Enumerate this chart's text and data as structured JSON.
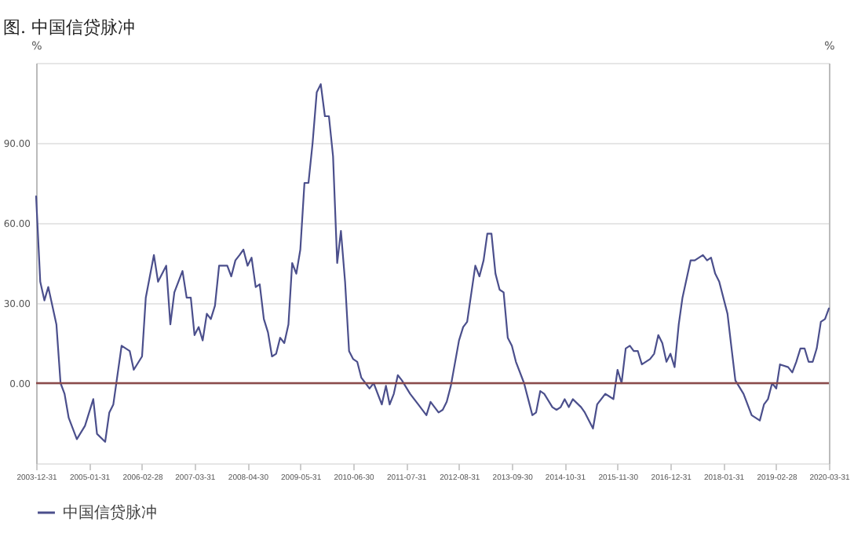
{
  "chart_data": {
    "type": "line",
    "title": "图. 中国信贷脉冲",
    "ylabel": "%",
    "y2label": "%",
    "x": [
      "2003-12",
      "2004-01",
      "2004-02",
      "2004-03",
      "2004-05",
      "2004-06",
      "2004-07",
      "2004-08",
      "2004-10",
      "2004-12",
      "2005-02",
      "2005-03",
      "2005-05",
      "2005-06",
      "2005-07",
      "2005-09",
      "2005-11",
      "2005-12",
      "2006-02",
      "2006-03",
      "2006-05",
      "2006-06",
      "2006-08",
      "2006-09",
      "2006-10",
      "2006-12",
      "2007-01",
      "2007-02",
      "2007-03",
      "2007-04",
      "2007-05",
      "2007-06",
      "2007-07",
      "2007-08",
      "2007-09",
      "2007-11",
      "2007-12",
      "2008-01",
      "2008-02",
      "2008-03",
      "2008-04",
      "2008-05",
      "2008-06",
      "2008-07",
      "2008-08",
      "2008-09",
      "2008-10",
      "2008-11",
      "2008-12",
      "2009-01",
      "2009-02",
      "2009-03",
      "2009-04",
      "2009-05",
      "2009-06",
      "2009-07",
      "2009-08",
      "2009-09",
      "2009-10",
      "2009-11",
      "2009-12",
      "2010-01",
      "2010-02",
      "2010-03",
      "2010-04",
      "2010-05",
      "2010-06",
      "2010-07",
      "2010-08",
      "2010-09",
      "2010-10",
      "2010-11",
      "2011-01",
      "2011-02",
      "2011-03",
      "2011-04",
      "2011-05",
      "2011-06",
      "2011-08",
      "2011-10",
      "2011-12",
      "2012-01",
      "2012-03",
      "2012-04",
      "2012-05",
      "2012-06",
      "2012-08",
      "2012-09",
      "2012-10",
      "2012-12",
      "2013-01",
      "2013-02",
      "2013-03",
      "2013-04",
      "2013-05",
      "2013-06",
      "2013-07",
      "2013-08",
      "2013-09",
      "2013-10",
      "2013-12",
      "2014-01",
      "2014-02",
      "2014-03",
      "2014-04",
      "2014-05",
      "2014-07",
      "2014-08",
      "2014-09",
      "2014-10",
      "2014-11",
      "2014-12",
      "2015-02",
      "2015-03",
      "2015-05",
      "2015-06",
      "2015-08",
      "2015-09",
      "2015-10",
      "2015-11",
      "2015-12",
      "2016-01",
      "2016-02",
      "2016-03",
      "2016-04",
      "2016-05",
      "2016-07",
      "2016-08",
      "2016-09",
      "2016-10",
      "2016-11",
      "2016-12",
      "2017-01",
      "2017-02",
      "2017-03",
      "2017-05",
      "2017-06",
      "2017-08",
      "2017-09",
      "2017-10",
      "2017-11",
      "2017-12",
      "2018-02",
      "2018-03",
      "2018-04",
      "2018-06",
      "2018-08",
      "2018-10",
      "2018-11",
      "2018-12",
      "2019-01",
      "2019-02",
      "2019-03",
      "2019-05",
      "2019-06",
      "2019-07",
      "2019-08",
      "2019-09",
      "2019-10",
      "2019-11",
      "2019-12",
      "2020-01",
      "2020-02",
      "2020-03"
    ],
    "series": [
      {
        "name": "中国信贷脉冲",
        "color": "#4b4f8c",
        "values": [
          70,
          38,
          31,
          36,
          22,
          0,
          -4,
          -13,
          -21,
          -16,
          -6,
          -19,
          -22,
          -11,
          -8,
          14,
          12,
          5,
          10,
          32,
          48,
          38,
          44,
          22,
          34,
          42,
          32,
          32,
          18,
          21,
          16,
          26,
          24,
          29,
          44,
          44,
          40,
          46,
          48,
          50,
          44,
          47,
          36,
          37,
          24,
          19,
          10,
          11,
          17,
          15,
          22,
          45,
          41,
          50,
          75,
          75,
          90,
          109,
          112,
          100,
          100,
          85,
          45,
          57,
          38,
          12,
          9,
          8,
          2,
          0,
          -2,
          0,
          -8,
          -1,
          -8,
          -4,
          3,
          1,
          -4,
          -8,
          -12,
          -7,
          -11,
          -10,
          -7,
          -1,
          16,
          21,
          23,
          44,
          40,
          46,
          56,
          56,
          41,
          35,
          34,
          17,
          14,
          8,
          0,
          -6,
          -12,
          -11,
          -3,
          -4,
          -9,
          -10,
          -9,
          -6,
          -9,
          -6,
          -9,
          -11,
          -17,
          -8,
          -4,
          -5,
          -6,
          5,
          0,
          13,
          14,
          12,
          12,
          7,
          9,
          11,
          18,
          15,
          8,
          11,
          6,
          22,
          32,
          46,
          46,
          48,
          46,
          47,
          41,
          38,
          26,
          14,
          1,
          -4,
          -12,
          -14,
          -8,
          -6,
          0,
          -2,
          7,
          6,
          4,
          8,
          13,
          13,
          8,
          8,
          13,
          23,
          24,
          28
        ]
      }
    ],
    "xlim": [
      "2003-12",
      "2020-03"
    ],
    "xticks": [
      {
        "value": "2003-12",
        "label": "2003-12-31"
      },
      {
        "value": "2005-01",
        "label": "2005-01-31"
      },
      {
        "value": "2006-02",
        "label": "2006-02-28"
      },
      {
        "value": "2007-03",
        "label": "2007-03-31"
      },
      {
        "value": "2008-04",
        "label": "2008-04-30"
      },
      {
        "value": "2009-05",
        "label": "2009-05-31"
      },
      {
        "value": "2010-06",
        "label": "2010-06-30"
      },
      {
        "value": "2011-07",
        "label": "2011-07-31"
      },
      {
        "value": "2012-08",
        "label": "2012-08-31"
      },
      {
        "value": "2013-09",
        "label": "2013-09-30"
      },
      {
        "value": "2014-10",
        "label": "2014-10-31"
      },
      {
        "value": "2015-11",
        "label": "2015-11-30"
      },
      {
        "value": "2016-12",
        "label": "2016-12-31"
      },
      {
        "value": "2018-01",
        "label": "2018-01-31"
      },
      {
        "value": "2019-02",
        "label": "2019-02-28"
      },
      {
        "value": "2020-03",
        "label": "2020-03-31"
      }
    ],
    "ylim": [
      -30,
      120
    ],
    "yticks": [
      {
        "value": -30,
        "label": null
      },
      {
        "value": 0,
        "label": "0.00"
      },
      {
        "value": 30,
        "label": "30.00"
      },
      {
        "value": 60,
        "label": "60.00"
      },
      {
        "value": 90,
        "label": "90.00"
      },
      {
        "value": 120,
        "label": null
      }
    ],
    "ref_lines": [
      {
        "axis": "y",
        "value": 0,
        "color": "#8b4a4a"
      }
    ],
    "grid": "y",
    "legend": "bottom",
    "marker": "none",
    "line_style": "solid"
  }
}
